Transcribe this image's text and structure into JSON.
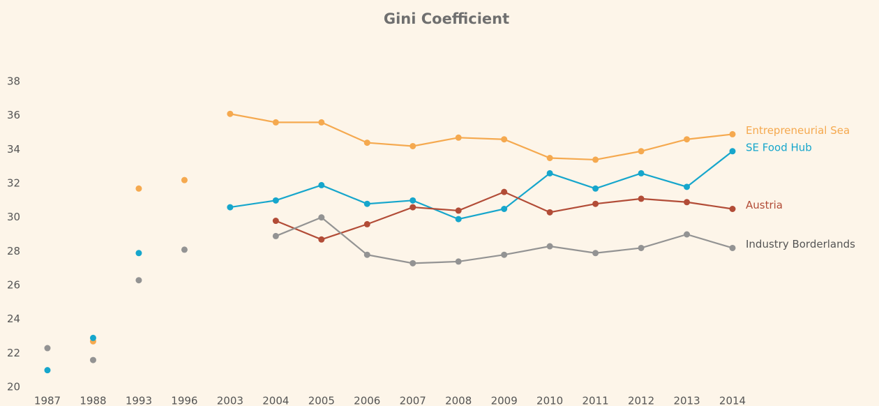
{
  "chart_data": {
    "type": "line",
    "title": "Gini Coefficient",
    "categories": [
      "1987",
      "1988",
      "1993",
      "1996",
      "2003",
      "2004",
      "2005",
      "2006",
      "2007",
      "2008",
      "2009",
      "2010",
      "2011",
      "2012",
      "2013",
      "2014"
    ],
    "lines_from": "2003",
    "ylim": [
      20,
      38
    ],
    "yticks": [
      20,
      22,
      24,
      26,
      28,
      30,
      32,
      34,
      36,
      38
    ],
    "grid": false,
    "series": [
      {
        "name": "Entrepreneurial Sea",
        "color": "#f5a94f",
        "values": [
          null,
          22.7,
          31.7,
          32.2,
          36.1,
          35.6,
          35.6,
          34.4,
          34.2,
          34.7,
          34.6,
          33.5,
          33.4,
          33.9,
          34.6,
          34.9
        ]
      },
      {
        "name": "SE Food Hub",
        "color": "#16a6cc",
        "values": [
          21.0,
          22.9,
          27.9,
          null,
          30.6,
          31.0,
          31.9,
          30.8,
          31.0,
          29.9,
          30.5,
          32.6,
          31.7,
          32.6,
          31.8,
          33.9
        ]
      },
      {
        "name": "Austria",
        "color": "#b24c37",
        "values": [
          null,
          null,
          null,
          null,
          null,
          29.8,
          28.7,
          29.6,
          30.6,
          30.4,
          31.5,
          30.3,
          30.8,
          31.1,
          30.9,
          30.5
        ]
      },
      {
        "name": "Industry Borderlands",
        "color": "#939393",
        "values": [
          22.3,
          21.6,
          26.3,
          28.1,
          null,
          28.9,
          30.0,
          27.8,
          27.3,
          27.4,
          27.8,
          28.3,
          27.9,
          28.2,
          29.0,
          28.2
        ]
      }
    ]
  }
}
